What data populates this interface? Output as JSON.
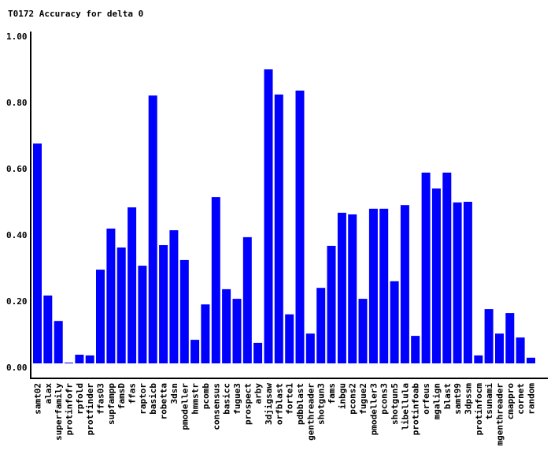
{
  "chart_data": {
    "type": "bar",
    "title": "T0172 Accuracy for delta 0",
    "xlabel": "",
    "ylabel": "",
    "ylim": [
      0,
      1.0
    ],
    "yticks": [
      "0.00",
      "0.20",
      "0.40",
      "0.60",
      "0.80",
      "1.00"
    ],
    "grid": false,
    "bar_color": "#0000ff",
    "categories": [
      "samt02",
      "alax",
      "superfamily",
      "protinfofr",
      "rpfold",
      "protfinder",
      "ffas03",
      "supfampp",
      "famsD",
      "ffas",
      "raptor",
      "basicb",
      "robetta",
      "3dsn",
      "pmodeller",
      "hmmstr",
      "pcomb",
      "consensus",
      "basicc",
      "fugue3",
      "prospect",
      "arby",
      "3djigsaw",
      "orfblast",
      "forte1",
      "pdbblast",
      "genthreader",
      "shotgun3",
      "fams",
      "inbgu",
      "pcons2",
      "fugue2",
      "pmodeller3",
      "pcons3",
      "shotgun5",
      "libellula",
      "protinfoab",
      "orfeus",
      "mgalign",
      "blast",
      "samt99",
      "3dpssm",
      "protinfocm",
      "tsunami",
      "mgenthreader",
      "cmappro",
      "cornet",
      "random"
    ],
    "values": [
      0.676,
      0.217,
      0.14,
      0.014,
      0.038,
      0.036,
      0.295,
      0.419,
      0.362,
      0.483,
      0.307,
      0.821,
      0.369,
      0.414,
      0.324,
      0.083,
      0.19,
      0.514,
      0.236,
      0.207,
      0.393,
      0.074,
      0.9,
      0.824,
      0.16,
      0.836,
      0.102,
      0.24,
      0.367,
      0.467,
      0.462,
      0.207,
      0.479,
      0.479,
      0.26,
      0.49,
      0.095,
      0.588,
      0.54,
      0.588,
      0.498,
      0.5,
      0.036,
      0.176,
      0.102,
      0.164,
      0.09,
      0.029
    ]
  }
}
